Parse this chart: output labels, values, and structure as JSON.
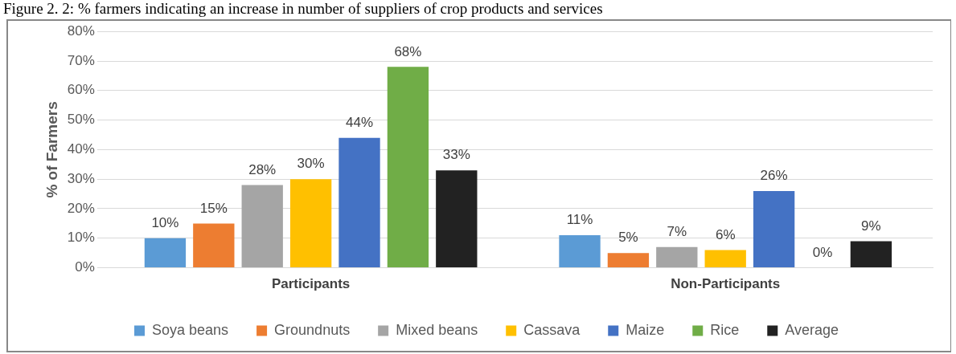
{
  "chart_data": {
    "type": "bar",
    "title": "Figure 2. 2: % farmers indicating an increase in number of suppliers of crop products and services",
    "ylabel": "% of Farmers",
    "categories": [
      "Participants",
      "Non-Participants"
    ],
    "series": [
      {
        "name": "Soya beans",
        "color": "#5b9bd5",
        "values": [
          10,
          11
        ]
      },
      {
        "name": "Groundnuts",
        "color": "#ed7d31",
        "values": [
          15,
          5
        ]
      },
      {
        "name": "Mixed beans",
        "color": "#a5a5a5",
        "values": [
          28,
          7
        ]
      },
      {
        "name": "Cassava",
        "color": "#ffc000",
        "values": [
          30,
          6
        ]
      },
      {
        "name": "Maize",
        "color": "#4472c4",
        "values": [
          44,
          26
        ]
      },
      {
        "name": "Rice",
        "color": "#70ad47",
        "values": [
          68,
          0
        ]
      },
      {
        "name": "Average",
        "color": "#222222",
        "values": [
          33,
          9
        ]
      }
    ],
    "ylim": [
      0,
      80
    ],
    "yticks": [
      {
        "value": 0,
        "label": "0%"
      },
      {
        "value": 10,
        "label": "10%"
      },
      {
        "value": 20,
        "label": "20%"
      },
      {
        "value": 30,
        "label": "30%"
      },
      {
        "value": 40,
        "label": "40%"
      },
      {
        "value": 50,
        "label": "50%"
      },
      {
        "value": 60,
        "label": "60%"
      },
      {
        "value": 70,
        "label": "70%"
      },
      {
        "value": 80,
        "label": "80%"
      }
    ],
    "value_labels": [
      [
        "10%",
        "11%"
      ],
      [
        "15%",
        "5%"
      ],
      [
        "28%",
        "7%"
      ],
      [
        "30%",
        "6%"
      ],
      [
        "44%",
        "26%"
      ],
      [
        "68%",
        "0%"
      ],
      [
        "33%",
        "9%"
      ]
    ],
    "grid": "y",
    "legend": "bottom"
  }
}
